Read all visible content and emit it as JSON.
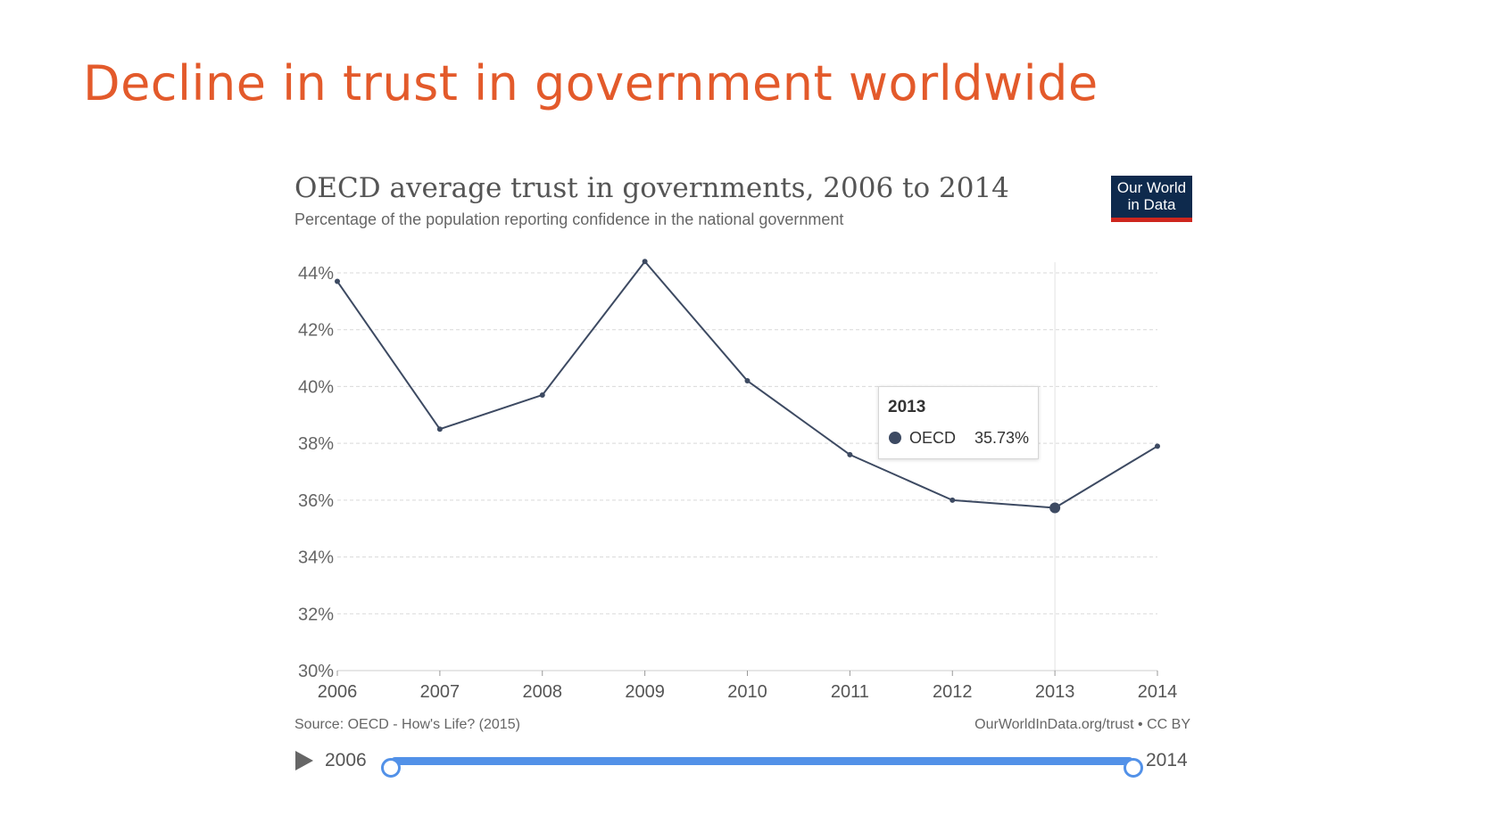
{
  "slide": {
    "title": "Decline in trust in government worldwide"
  },
  "chart": {
    "title": "OECD average trust in governments, 2006 to 2014",
    "subtitle": "Percentage of the population reporting confidence in the national government",
    "logo": {
      "line1": "Our World",
      "line2": "in Data"
    },
    "tooltip": {
      "year": "2013",
      "series": "OECD",
      "value": "35.73%"
    },
    "source": "Source: OECD - How's Life? (2015)",
    "license": "OurWorldInData.org/trust • CC BY",
    "timeline": {
      "start_label": "2006",
      "end_label": "2014",
      "range_start_fraction": 0,
      "range_end_fraction": 1
    }
  },
  "colors": {
    "slide_title": "#e35a2b",
    "series_line": "#3d4a62",
    "timeline_accent": "#5291e8",
    "logo_background": "#0e2a4d",
    "logo_stripe": "#ce261e"
  },
  "chart_data": {
    "type": "line",
    "title": "OECD average trust in governments, 2006 to 2014",
    "subtitle": "Percentage of the population reporting confidence in the national government",
    "x": [
      2006,
      2007,
      2008,
      2009,
      2010,
      2011,
      2012,
      2013,
      2014
    ],
    "series": [
      {
        "name": "OECD",
        "values": [
          43.7,
          38.5,
          39.7,
          44.4,
          40.2,
          37.6,
          36.0,
          35.73,
          37.9
        ]
      }
    ],
    "xlim": [
      2006,
      2014
    ],
    "ylim": [
      30,
      44
    ],
    "y_ticks": [
      30,
      32,
      34,
      36,
      38,
      40,
      42,
      44
    ],
    "y_tick_labels": [
      "30%",
      "32%",
      "34%",
      "36%",
      "38%",
      "40%",
      "42%",
      "44%"
    ],
    "x_tick_labels": [
      "2006",
      "2007",
      "2008",
      "2009",
      "2010",
      "2011",
      "2012",
      "2013",
      "2014"
    ],
    "highlight_x": 2013,
    "grid": true,
    "grid_style": "dashed horizontal",
    "legend": "none"
  }
}
